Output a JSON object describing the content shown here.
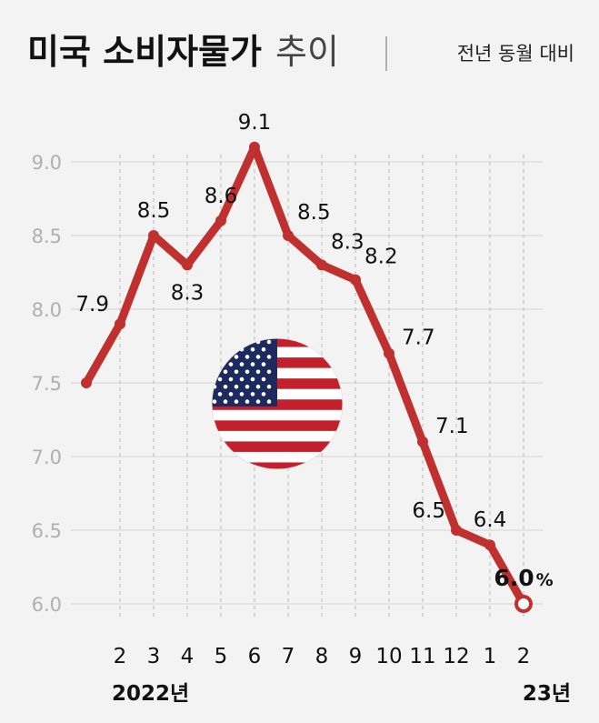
{
  "chart_data": {
    "type": "line",
    "title": "미국 소비자물가",
    "title_suffix": "추이",
    "subtitle": "전년 동월 대비",
    "y_ticks": [
      "6.0",
      "6.5",
      "7.0",
      "7.5",
      "8.0",
      "8.5",
      "9.0"
    ],
    "ylim": [
      6.0,
      9.0
    ],
    "grid": true,
    "x_ticks": [
      "",
      "2",
      "3",
      "4",
      "5",
      "6",
      "7",
      "8",
      "9",
      "10",
      "11",
      "12",
      "1",
      "2"
    ],
    "year_labels": [
      "2022년",
      "23년"
    ],
    "values": [
      7.5,
      7.9,
      8.5,
      8.3,
      8.6,
      9.1,
      8.5,
      8.3,
      8.2,
      7.7,
      7.1,
      6.5,
      6.4,
      6.0
    ],
    "data_labels": [
      "",
      "7.9",
      "8.5",
      "8.3",
      "8.6",
      "9.1",
      "8.5",
      "8.3",
      "8.2",
      "7.7",
      "7.1",
      "6.5",
      "6.4",
      "6.0"
    ],
    "last_label_unit": "%",
    "line_color": "#c0302e",
    "icon": "us-flag-icon"
  }
}
